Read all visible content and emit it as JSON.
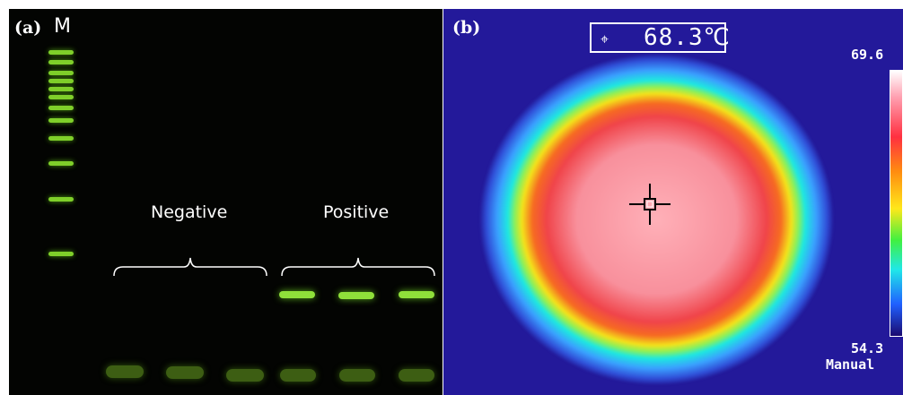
{
  "panel_a": {
    "label": "(a)",
    "marker_label": "M",
    "groups": [
      {
        "label": "Negative"
      },
      {
        "label": "Positive"
      }
    ]
  },
  "panel_b": {
    "label": "(b)",
    "temperature_readout": "68.3℃",
    "scale_max": "69.6",
    "scale_min": "54.3",
    "mode_text": "Manual"
  },
  "colors": {
    "gel_background": "#030402",
    "band": "#8fe03a",
    "thermal_background": "#23199a"
  }
}
